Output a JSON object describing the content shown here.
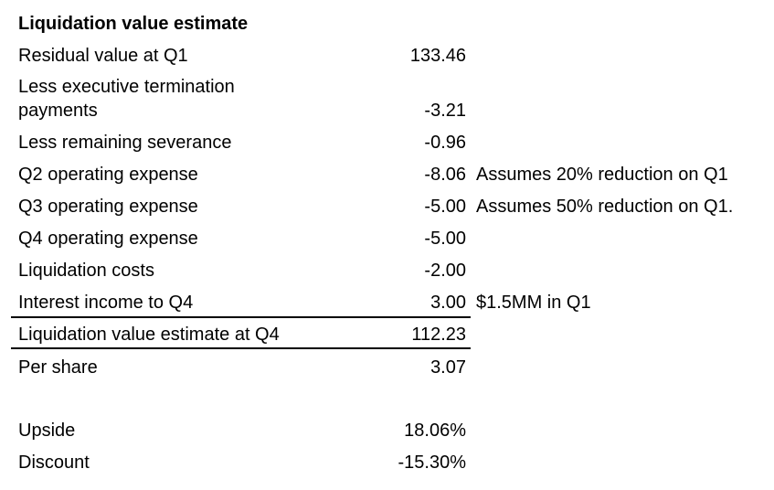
{
  "title": "Liquidation value estimate",
  "rows": [
    {
      "label": "Residual value at Q1",
      "value": "133.46",
      "note": ""
    },
    {
      "label": "Less executive termination",
      "label2": "payments",
      "value": "-3.21",
      "note": ""
    },
    {
      "label": "Less remaining severance",
      "value": "-0.96",
      "note": ""
    },
    {
      "label": "Q2 operating expense",
      "value": "-8.06",
      "note": "Assumes 20% reduction on Q1"
    },
    {
      "label": "Q3 operating expense",
      "value": "-5.00",
      "note": "Assumes 50% reduction on Q1."
    },
    {
      "label": "Q4 operating expense",
      "value": "-5.00",
      "note": ""
    },
    {
      "label": "Liquidation costs",
      "value": "-2.00",
      "note": ""
    },
    {
      "label": "Interest income to Q4",
      "value": "3.00",
      "note": "$1.5MM in Q1"
    }
  ],
  "total": {
    "label": "Liquidation value estimate at Q4",
    "value": "112.23"
  },
  "per_share": {
    "label": "Per share",
    "value": "3.07"
  },
  "upside": {
    "label": "Upside",
    "value": "18.06%"
  },
  "discount": {
    "label": "Discount",
    "value": "-15.30%"
  }
}
